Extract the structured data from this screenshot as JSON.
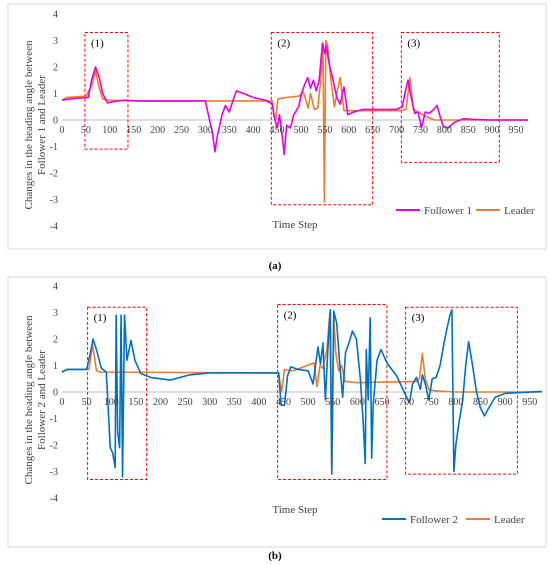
{
  "chart_data": [
    {
      "type": "line",
      "panel": "(a)",
      "ylabel": "Changes in the heading angle between Follower  1 and Leader",
      "ylabel_lines": [
        "Changes in the heading angle between",
        "Follower  1 and Leader"
      ],
      "xlabel": "Time Step",
      "xlim": [
        0,
        975
      ],
      "ylim": [
        -4,
        4
      ],
      "xticks": [
        0,
        50,
        100,
        150,
        200,
        250,
        300,
        350,
        400,
        450,
        500,
        550,
        600,
        650,
        700,
        750,
        800,
        850,
        900,
        950
      ],
      "yticks": [
        -4,
        -3,
        -2,
        -1,
        0,
        1,
        2,
        3,
        4
      ],
      "legend_position": "bottom-right",
      "regions": [
        {
          "label": "(1)",
          "x": [
            48,
            138
          ],
          "y": [
            -1.1,
            3.3
          ]
        },
        {
          "label": "(2)",
          "x": [
            438,
            650
          ],
          "y": [
            -3.2,
            3.3
          ]
        },
        {
          "label": "(3)",
          "x": [
            710,
            915
          ],
          "y": [
            -1.6,
            3.3
          ]
        }
      ],
      "series": [
        {
          "name": "Follower 1",
          "color": "#e600e6",
          "points": [
            [
              0,
              0.75
            ],
            [
              20,
              0.8
            ],
            [
              55,
              0.85
            ],
            [
              62,
              1.5
            ],
            [
              70,
              2.0
            ],
            [
              78,
              1.6
            ],
            [
              85,
              1.0
            ],
            [
              95,
              0.65
            ],
            [
              110,
              0.7
            ],
            [
              130,
              0.75
            ],
            [
              160,
              0.72
            ],
            [
              250,
              0.72
            ],
            [
              300,
              0.72
            ],
            [
              305,
              0.3
            ],
            [
              315,
              -0.5
            ],
            [
              320,
              -1.2
            ],
            [
              325,
              -0.6
            ],
            [
              335,
              0.2
            ],
            [
              342,
              0.55
            ],
            [
              350,
              0.3
            ],
            [
              358,
              0.75
            ],
            [
              365,
              1.1
            ],
            [
              380,
              1.0
            ],
            [
              400,
              0.85
            ],
            [
              425,
              0.75
            ],
            [
              440,
              0.6
            ],
            [
              445,
              0.05
            ],
            [
              450,
              -0.3
            ],
            [
              455,
              0.2
            ],
            [
              460,
              -0.5
            ],
            [
              465,
              -1.3
            ],
            [
              470,
              -0.2
            ],
            [
              478,
              -0.3
            ],
            [
              485,
              0.2
            ],
            [
              495,
              0.5
            ],
            [
              502,
              1.05
            ],
            [
              508,
              1.35
            ],
            [
              514,
              1.6
            ],
            [
              520,
              1.2
            ],
            [
              526,
              1.5
            ],
            [
              532,
              1.1
            ],
            [
              538,
              1.5
            ],
            [
              545,
              2.9
            ],
            [
              550,
              2.5
            ],
            [
              553,
              2.8
            ],
            [
              558,
              2.2
            ],
            [
              566,
              1.6
            ],
            [
              575,
              0.85
            ],
            [
              582,
              0.6
            ],
            [
              590,
              1.25
            ],
            [
              598,
              0.2
            ],
            [
              610,
              0.3
            ],
            [
              630,
              0.4
            ],
            [
              700,
              0.4
            ],
            [
              712,
              0.5
            ],
            [
              718,
              1.05
            ],
            [
              724,
              1.5
            ],
            [
              730,
              0.9
            ],
            [
              738,
              0.25
            ],
            [
              745,
              0.3
            ],
            [
              752,
              -0.3
            ],
            [
              760,
              0.3
            ],
            [
              768,
              0.25
            ],
            [
              778,
              0.4
            ],
            [
              785,
              0.55
            ],
            [
              790,
              0.2
            ],
            [
              798,
              -0.25
            ],
            [
              808,
              -0.3
            ],
            [
              820,
              -0.1
            ],
            [
              840,
              0.05
            ],
            [
              860,
              0.02
            ],
            [
              900,
              0.0
            ],
            [
              975,
              0.0
            ]
          ]
        },
        {
          "name": "Leader",
          "color": "#ed7d31",
          "points": [
            [
              0,
              0.75
            ],
            [
              10,
              0.85
            ],
            [
              50,
              0.9
            ],
            [
              62,
              1.3
            ],
            [
              70,
              1.85
            ],
            [
              78,
              1.2
            ],
            [
              85,
              0.8
            ],
            [
              95,
              0.75
            ],
            [
              150,
              0.72
            ],
            [
              440,
              0.72
            ],
            [
              443,
              0.15
            ],
            [
              447,
              0.0
            ],
            [
              452,
              0.8
            ],
            [
              470,
              0.85
            ],
            [
              495,
              0.9
            ],
            [
              505,
              1.05
            ],
            [
              515,
              0.45
            ],
            [
              520,
              1.0
            ],
            [
              528,
              0.4
            ],
            [
              535,
              0.45
            ],
            [
              542,
              1.6
            ],
            [
              546,
              2.9
            ],
            [
              549,
              -3.1
            ],
            [
              552,
              3.0
            ],
            [
              556,
              2.8
            ],
            [
              562,
              1.6
            ],
            [
              570,
              0.5
            ],
            [
              576,
              1.1
            ],
            [
              582,
              1.6
            ],
            [
              590,
              0.35
            ],
            [
              600,
              0.35
            ],
            [
              710,
              0.35
            ],
            [
              720,
              0.4
            ],
            [
              728,
              1.6
            ],
            [
              735,
              0.4
            ],
            [
              750,
              0.25
            ],
            [
              765,
              0.1
            ],
            [
              780,
              0.0
            ],
            [
              850,
              0.0
            ],
            [
              975,
              0.0
            ]
          ]
        }
      ],
      "caption": "(a)"
    },
    {
      "type": "line",
      "panel": "(b)",
      "ylabel": "Changes in the heading angle between Follower 2 and Leader",
      "ylabel_lines": [
        "Changes in the heading angle between",
        "Follower 2 and Leader"
      ],
      "xlabel": "Time Step",
      "xlim": [
        0,
        975
      ],
      "ylim": [
        -4,
        4
      ],
      "xticks": [
        0,
        50,
        100,
        150,
        200,
        250,
        300,
        350,
        400,
        450,
        500,
        550,
        600,
        650,
        700,
        750,
        800,
        850,
        900,
        950
      ],
      "yticks": [
        -4,
        -3,
        -2,
        -1,
        0,
        1,
        2,
        3,
        4
      ],
      "legend_position": "bottom-right",
      "regions": [
        {
          "label": "(1)",
          "x": [
            52,
            172
          ],
          "y": [
            -3.3,
            3.2
          ]
        },
        {
          "label": "(2)",
          "x": [
            438,
            660
          ],
          "y": [
            -3.3,
            3.3
          ]
        },
        {
          "label": "(3)",
          "x": [
            698,
            925
          ],
          "y": [
            -3.1,
            3.2
          ]
        }
      ],
      "series": [
        {
          "name": "Follower 2",
          "color": "#0070c0",
          "points": [
            [
              0,
              0.75
            ],
            [
              10,
              0.85
            ],
            [
              50,
              0.85
            ],
            [
              58,
              1.5
            ],
            [
              63,
              2.0
            ],
            [
              70,
              1.6
            ],
            [
              80,
              0.9
            ],
            [
              90,
              0.75
            ],
            [
              98,
              -2.1
            ],
            [
              103,
              -2.3
            ],
            [
              108,
              -2.85
            ],
            [
              110,
              2.9
            ],
            [
              113,
              -1.5
            ],
            [
              117,
              -2.1
            ],
            [
              120,
              2.9
            ],
            [
              123,
              -3.2
            ],
            [
              127,
              2.9
            ],
            [
              132,
              1.2
            ],
            [
              140,
              1.95
            ],
            [
              148,
              1.2
            ],
            [
              160,
              0.7
            ],
            [
              180,
              0.55
            ],
            [
              220,
              0.45
            ],
            [
              260,
              0.65
            ],
            [
              300,
              0.72
            ],
            [
              440,
              0.72
            ],
            [
              445,
              -0.5
            ],
            [
              452,
              -0.5
            ],
            [
              458,
              0.6
            ],
            [
              465,
              0.95
            ],
            [
              480,
              0.85
            ],
            [
              500,
              0.8
            ],
            [
              510,
              0.3
            ],
            [
              520,
              1.7
            ],
            [
              525,
              1.05
            ],
            [
              530,
              1.85
            ],
            [
              535,
              -0.3
            ],
            [
              540,
              1.6
            ],
            [
              545,
              3.1
            ],
            [
              548,
              -3.1
            ],
            [
              552,
              3.05
            ],
            [
              558,
              2.6
            ],
            [
              564,
              1.1
            ],
            [
              570,
              -0.2
            ],
            [
              576,
              1.5
            ],
            [
              582,
              1.8
            ],
            [
              590,
              2.3
            ],
            [
              598,
              2.0
            ],
            [
              606,
              0.5
            ],
            [
              612,
              -1.2
            ],
            [
              616,
              -2.7
            ],
            [
              618,
              1.6
            ],
            [
              622,
              -0.3
            ],
            [
              626,
              2.8
            ],
            [
              629,
              -2.5
            ],
            [
              632,
              -0.5
            ],
            [
              640,
              1.2
            ],
            [
              648,
              1.6
            ],
            [
              660,
              1.1
            ],
            [
              680,
              0.6
            ],
            [
              700,
              -0.2
            ],
            [
              706,
              -0.4
            ],
            [
              712,
              0.3
            ],
            [
              720,
              0.55
            ],
            [
              728,
              0.1
            ],
            [
              732,
              0.65
            ],
            [
              738,
              0.3
            ],
            [
              745,
              -0.3
            ],
            [
              752,
              0.5
            ],
            [
              760,
              0.55
            ],
            [
              768,
              1.0
            ],
            [
              776,
              1.85
            ],
            [
              782,
              2.4
            ],
            [
              788,
              2.9
            ],
            [
              792,
              3.1
            ],
            [
              796,
              -3.0
            ],
            [
              800,
              -2.0
            ],
            [
              806,
              -1.2
            ],
            [
              814,
              -0.3
            ],
            [
              820,
              1.0
            ],
            [
              826,
              1.9
            ],
            [
              834,
              1.0
            ],
            [
              842,
              0.0
            ],
            [
              850,
              -0.6
            ],
            [
              858,
              -0.9
            ],
            [
              870,
              -0.5
            ],
            [
              880,
              -0.2
            ],
            [
              900,
              -0.05
            ],
            [
              975,
              0.02
            ]
          ]
        },
        {
          "name": "Leader",
          "color": "#ed7d31",
          "points": [
            [
              0,
              0.75
            ],
            [
              10,
              0.85
            ],
            [
              55,
              0.85
            ],
            [
              62,
              1.8
            ],
            [
              70,
              0.8
            ],
            [
              80,
              0.75
            ],
            [
              440,
              0.72
            ],
            [
              446,
              0.0
            ],
            [
              452,
              0.85
            ],
            [
              470,
              0.8
            ],
            [
              505,
              1.05
            ],
            [
              512,
              1.1
            ],
            [
              518,
              0.2
            ],
            [
              524,
              1.0
            ],
            [
              530,
              0.9
            ],
            [
              538,
              1.6
            ],
            [
              544,
              3.0
            ],
            [
              548,
              -3.0
            ],
            [
              552,
              2.9
            ],
            [
              556,
              1.5
            ],
            [
              562,
              0.8
            ],
            [
              568,
              1.0
            ],
            [
              575,
              0.4
            ],
            [
              600,
              0.35
            ],
            [
              720,
              0.4
            ],
            [
              726,
              0.5
            ],
            [
              732,
              1.45
            ],
            [
              738,
              0.5
            ],
            [
              745,
              0.1
            ],
            [
              755,
              0.05
            ],
            [
              800,
              0.0
            ],
            [
              975,
              0.0
            ]
          ]
        }
      ],
      "caption": "(b)"
    }
  ]
}
